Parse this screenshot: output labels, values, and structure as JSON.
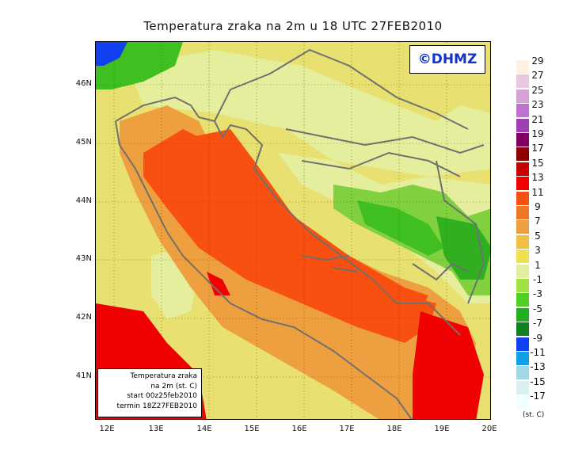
{
  "title": "Temperatura zraka na 2m u 18 UTC 27FEB2010",
  "logo": "©DHMZ",
  "info_box": {
    "line1": "Temperatura zraka",
    "line2": "na 2m (st. C)",
    "line3": "start 00z25feb2010",
    "line4": "termin 18Z27FEB2010"
  },
  "lat_labels": [
    "46N",
    "45N",
    "44N",
    "43N",
    "42N",
    "41N"
  ],
  "lon_labels": [
    "12E",
    "13E",
    "14E",
    "15E",
    "16E",
    "17E",
    "18E",
    "19E",
    "20E"
  ],
  "legend": {
    "unit": "(st. C)",
    "labels": [
      "29",
      "27",
      "25",
      "23",
      "21",
      "19",
      "17",
      "15",
      "13",
      "11",
      "9",
      "7",
      "5",
      "3",
      "1",
      "-1",
      "-3",
      "-5",
      "-7",
      "-9",
      "-11",
      "-13",
      "-15",
      "-17"
    ],
    "colors": [
      "#fff0e0",
      "#e6c8e0",
      "#d8a0d8",
      "#c070d0",
      "#a040b0",
      "#800060",
      "#8c0000",
      "#c80000",
      "#f00000",
      "#f85010",
      "#ee7828",
      "#eea040",
      "#eec040",
      "#eee050",
      "#e0f0a0",
      "#a0e040",
      "#50d020",
      "#20b020",
      "#108020",
      "#1040f0",
      "#10a0e8",
      "#a0d8e8",
      "#d8f0f0",
      "#f0ffff"
    ]
  }
}
